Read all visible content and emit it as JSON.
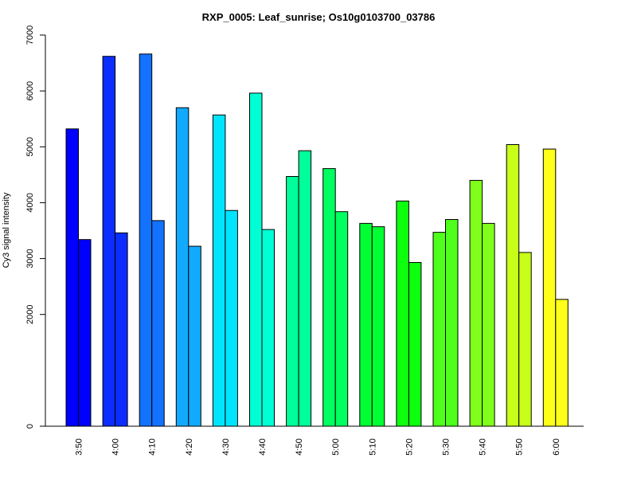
{
  "chart_data": {
    "type": "bar",
    "title": "RXP_0005: Leaf_sunrise; Os10g0103700_03786",
    "xlabel": "",
    "ylabel": "Cy3 signal intensity",
    "categories": [
      "3:50",
      "4:00",
      "4:10",
      "4:20",
      "4:30",
      "4:40",
      "4:50",
      "5:00",
      "5:10",
      "5:20",
      "5:30",
      "5:40",
      "5:50",
      "6:00"
    ],
    "series": [
      {
        "values": [
          5320,
          6620,
          6660,
          5700,
          5570,
          5960,
          4470,
          4610,
          3630,
          4030,
          3470,
          4400,
          5040,
          4960
        ]
      },
      {
        "values": [
          3340,
          3460,
          3680,
          3220,
          3860,
          3520,
          4930,
          3840,
          3570,
          2930,
          3700,
          3630,
          3110,
          2270
        ]
      }
    ],
    "bar_colors": [
      "#0000FF",
      "#0B2DFF",
      "#1372FF",
      "#11AAFF",
      "#00E5FF",
      "#00FFD5",
      "#00FF9A",
      "#00FF60",
      "#00FF33",
      "#0DFF0D",
      "#4DFF1A",
      "#80FF1A",
      "#C7FF1A",
      "#FFFF1A"
    ],
    "yticks": [
      0,
      2000,
      3000,
      4000,
      5000,
      6000,
      7000
    ],
    "ylim": [
      0,
      7000
    ],
    "grid": false,
    "legend": "none"
  }
}
